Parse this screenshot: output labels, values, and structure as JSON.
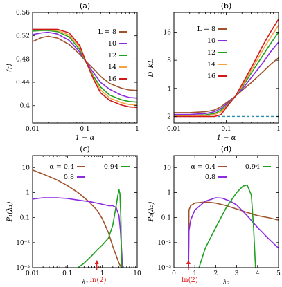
{
  "chart_data": [
    {
      "panel": "(a)",
      "type": "line",
      "xlabel": "1 − α",
      "ylabel": "⟨r⟩",
      "xscale": "log",
      "xlim": [
        0.01,
        1
      ],
      "ylim": [
        0.37,
        0.56
      ],
      "xticks": [
        0.01,
        0.1,
        1
      ],
      "xtick_labels": [
        "0.01",
        "0.1",
        "1"
      ],
      "yticks": [
        0.4,
        0.44,
        0.48,
        0.52,
        0.56
      ],
      "ytick_labels": [
        "0.4",
        "0.44",
        "0.48",
        "0.52",
        "0.56"
      ],
      "legend_title": "L =",
      "legend_placement": "right",
      "series": [
        {
          "name": "8",
          "color": "#a0522d",
          "x": [
            0.01,
            0.015,
            0.02,
            0.03,
            0.05,
            0.08,
            0.1,
            0.15,
            0.2,
            0.3,
            0.5,
            0.7,
            1.0
          ],
          "y": [
            0.51,
            0.517,
            0.519,
            0.516,
            0.505,
            0.488,
            0.478,
            0.462,
            0.45,
            0.438,
            0.43,
            0.427,
            0.426
          ]
        },
        {
          "name": "10",
          "color": "#8a2be2",
          "x": [
            0.01,
            0.015,
            0.02,
            0.03,
            0.05,
            0.08,
            0.1,
            0.15,
            0.2,
            0.3,
            0.5,
            0.7,
            1.0
          ],
          "y": [
            0.522,
            0.525,
            0.526,
            0.523,
            0.512,
            0.492,
            0.478,
            0.455,
            0.44,
            0.428,
            0.418,
            0.414,
            0.413
          ]
        },
        {
          "name": "12",
          "color": "#1fa01f",
          "x": [
            0.01,
            0.015,
            0.02,
            0.03,
            0.05,
            0.08,
            0.1,
            0.15,
            0.2,
            0.3,
            0.5,
            0.7,
            1.0
          ],
          "y": [
            0.528,
            0.529,
            0.529,
            0.527,
            0.518,
            0.496,
            0.478,
            0.449,
            0.432,
            0.418,
            0.41,
            0.407,
            0.406
          ]
        },
        {
          "name": "14",
          "color": "#f5a340",
          "x": [
            0.01,
            0.015,
            0.02,
            0.03,
            0.05,
            0.08,
            0.1,
            0.15,
            0.2,
            0.3,
            0.5,
            0.7,
            1.0
          ],
          "y": [
            0.53,
            0.53,
            0.53,
            0.529,
            0.521,
            0.5,
            0.479,
            0.446,
            0.427,
            0.413,
            0.405,
            0.402,
            0.401
          ]
        },
        {
          "name": "16",
          "color": "#d01818",
          "x": [
            0.01,
            0.015,
            0.02,
            0.03,
            0.05,
            0.08,
            0.1,
            0.15,
            0.2,
            0.3,
            0.5,
            0.7,
            1.0
          ],
          "y": [
            0.531,
            0.531,
            0.531,
            0.531,
            0.525,
            0.503,
            0.48,
            0.443,
            0.422,
            0.409,
            0.401,
            0.398,
            0.397
          ]
        }
      ]
    },
    {
      "panel": "(b)",
      "type": "line",
      "xlabel": "1 − α",
      "ylabel": "D_KL",
      "xscale": "log",
      "yscale": "log",
      "xlim": [
        0.01,
        1
      ],
      "ylim": [
        1.7,
        26
      ],
      "xticks": [
        0.01,
        0.1,
        1
      ],
      "xtick_labels": [
        "0.01",
        "0.1",
        "1"
      ],
      "yticks": [
        2,
        4,
        8,
        16
      ],
      "ytick_labels": [
        "2",
        "4",
        "8",
        "16"
      ],
      "legend_title": "L =",
      "legend_placement": "top-left",
      "reference_line": {
        "y": 2,
        "style": "dashed",
        "color": "#2a8fb0"
      },
      "series": [
        {
          "name": "8",
          "color": "#a0522d",
          "x": [
            0.01,
            0.02,
            0.04,
            0.06,
            0.08,
            0.1,
            0.15,
            0.2,
            0.3,
            0.5,
            0.7,
            1.0
          ],
          "y": [
            2.2,
            2.2,
            2.25,
            2.35,
            2.55,
            2.8,
            3.3,
            3.8,
            4.6,
            6.0,
            7.2,
            8.5
          ]
        },
        {
          "name": "10",
          "color": "#8a2be2",
          "x": [
            0.01,
            0.02,
            0.04,
            0.06,
            0.08,
            0.1,
            0.15,
            0.2,
            0.3,
            0.5,
            0.7,
            1.0
          ],
          "y": [
            2.1,
            2.1,
            2.15,
            2.25,
            2.45,
            2.7,
            3.3,
            3.9,
            5.2,
            7.5,
            9.8,
            12.5
          ]
        },
        {
          "name": "12",
          "color": "#1fa01f",
          "x": [
            0.01,
            0.02,
            0.04,
            0.06,
            0.08,
            0.1,
            0.15,
            0.2,
            0.3,
            0.5,
            0.7,
            1.0
          ],
          "y": [
            2.05,
            2.05,
            2.08,
            2.15,
            2.35,
            2.6,
            3.3,
            4.1,
            5.8,
            9.0,
            12.0,
            16.0
          ]
        },
        {
          "name": "14",
          "color": "#f5a340",
          "x": [
            0.01,
            0.02,
            0.04,
            0.06,
            0.08,
            0.1,
            0.15,
            0.2,
            0.3,
            0.5,
            0.7,
            1.0
          ],
          "y": [
            2.02,
            2.02,
            2.04,
            2.1,
            2.25,
            2.55,
            3.3,
            4.2,
            6.2,
            10.3,
            14.0,
            19.0
          ]
        },
        {
          "name": "16",
          "color": "#d01818",
          "x": [
            0.01,
            0.02,
            0.04,
            0.06,
            0.08,
            0.1,
            0.15,
            0.2,
            0.3,
            0.5,
            0.7,
            1.0
          ],
          "y": [
            2.0,
            2.0,
            2.0,
            2.0,
            2.1,
            2.5,
            3.3,
            4.4,
            6.6,
            11.5,
            16.0,
            22.0
          ]
        }
      ]
    },
    {
      "panel": "(c)",
      "type": "line",
      "xlabel": "λ₁",
      "ylabel": "P₁(λ₁)",
      "xscale": "log",
      "yscale": "log",
      "xlim": [
        0.01,
        10
      ],
      "ylim": [
        0.001,
        30
      ],
      "xticks": [
        0.01,
        0.1,
        1,
        10
      ],
      "xtick_labels": [
        "0.01",
        "0.1",
        "1",
        "10"
      ],
      "yticks": [
        0.001,
        0.01,
        0.1,
        1,
        10
      ],
      "ytick_labels": [
        "10⁻³",
        "10⁻²",
        "0.1",
        "1",
        "10"
      ],
      "legend_placement": "top",
      "annotation": {
        "text": "ln(2)",
        "x": 0.693,
        "color": "#e02020"
      },
      "series": [
        {
          "name": "α = 0.4",
          "color": "#a0522d",
          "x": [
            0.01,
            0.02,
            0.05,
            0.1,
            0.2,
            0.4,
            0.7,
            1.0,
            1.5,
            2.0,
            2.5,
            3.0,
            3.5
          ],
          "y": [
            8.0,
            5.5,
            3.2,
            1.9,
            1.0,
            0.45,
            0.2,
            0.09,
            0.025,
            0.007,
            0.003,
            0.0015,
            0.001
          ]
        },
        {
          "name": "0.8",
          "color": "#8a2be2",
          "x": [
            0.01,
            0.02,
            0.05,
            0.1,
            0.2,
            0.5,
            1.0,
            1.5,
            2.0,
            2.5,
            3.0,
            3.3,
            3.6,
            3.8
          ],
          "y": [
            0.55,
            0.62,
            0.62,
            0.58,
            0.5,
            0.42,
            0.34,
            0.3,
            0.3,
            0.25,
            0.12,
            0.03,
            0.004,
            0.001
          ]
        },
        {
          "name": "0.94",
          "color": "#1fa01f",
          "x": [
            0.2,
            0.3,
            0.5,
            0.7,
            1.0,
            1.5,
            2.0,
            2.5,
            2.8,
            3.0,
            3.2,
            3.4,
            3.6
          ],
          "y": [
            0.001,
            0.0015,
            0.003,
            0.005,
            0.008,
            0.015,
            0.05,
            0.3,
            0.8,
            1.3,
            0.9,
            0.1,
            0.001
          ]
        }
      ]
    },
    {
      "panel": "(d)",
      "type": "line",
      "xlabel": "λ₂",
      "ylabel": "P₂(λ₂)",
      "yscale": "log",
      "xlim": [
        0,
        5
      ],
      "ylim": [
        0.001,
        30
      ],
      "xticks": [
        0,
        1,
        2,
        3,
        4,
        5
      ],
      "xtick_labels": [
        "0",
        "1",
        "2",
        "3",
        "4",
        "5"
      ],
      "yticks": [
        0.001,
        0.01,
        0.1,
        1,
        10
      ],
      "ytick_labels": [
        "10⁻³",
        "10⁻²",
        "0.1",
        "1",
        "10"
      ],
      "legend_placement": "top",
      "annotation": {
        "text": "ln(2)",
        "x": 0.693,
        "color": "#e02020"
      },
      "series": [
        {
          "name": "α = 0.4",
          "color": "#a0522d",
          "x": [
            0.7,
            0.72,
            0.8,
            1.0,
            1.5,
            2.0,
            2.5,
            3.0,
            3.5,
            4.0,
            4.5,
            5.0
          ],
          "y": [
            0.001,
            0.2,
            0.3,
            0.38,
            0.42,
            0.38,
            0.3,
            0.22,
            0.16,
            0.12,
            0.1,
            0.08
          ]
        },
        {
          "name": "0.8",
          "color": "#8a2be2",
          "x": [
            0.7,
            0.72,
            0.8,
            1.0,
            1.5,
            2.0,
            2.3,
            2.7,
            3.0,
            3.5,
            4.0,
            4.5,
            5.0
          ],
          "y": [
            0.001,
            0.03,
            0.08,
            0.2,
            0.45,
            0.62,
            0.6,
            0.45,
            0.32,
            0.12,
            0.04,
            0.015,
            0.006
          ]
        },
        {
          "name": "0.94",
          "color": "#1fa01f",
          "x": [
            1.2,
            1.5,
            2.0,
            2.5,
            3.0,
            3.3,
            3.5,
            3.7,
            3.8,
            3.9
          ],
          "y": [
            0.001,
            0.006,
            0.04,
            0.25,
            1.0,
            1.8,
            2.0,
            0.8,
            0.05,
            0.001
          ]
        }
      ]
    }
  ]
}
